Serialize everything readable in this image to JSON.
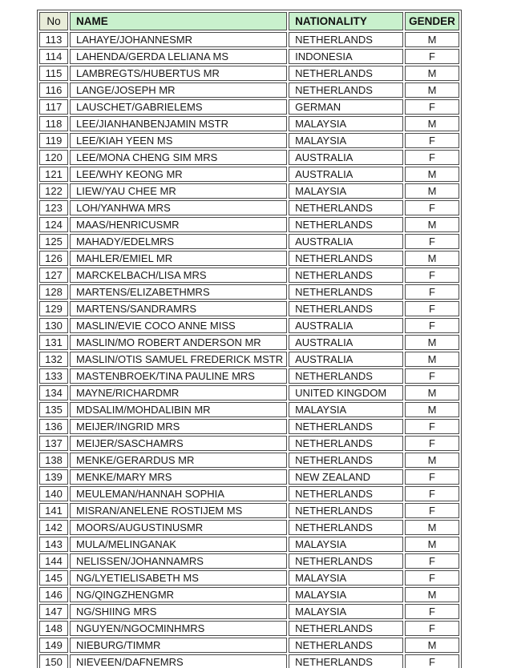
{
  "table": {
    "columns": [
      {
        "key": "no",
        "label": "No"
      },
      {
        "key": "name",
        "label": "NAME"
      },
      {
        "key": "nationality",
        "label": "NATIONALITY"
      },
      {
        "key": "gender",
        "label": "GENDER"
      }
    ],
    "rows": [
      {
        "no": "113",
        "name": "LAHAYE/JOHANNESMR",
        "nationality": "NETHERLANDS",
        "gender": "M"
      },
      {
        "no": "114",
        "name": "LAHENDA/GERDA LELIANA MS",
        "nationality": "INDONESIA",
        "gender": "F"
      },
      {
        "no": "115",
        "name": "LAMBREGTS/HUBERTUS MR",
        "nationality": "NETHERLANDS",
        "gender": "M"
      },
      {
        "no": "116",
        "name": "LANGE/JOSEPH MR",
        "nationality": "NETHERLANDS",
        "gender": "M"
      },
      {
        "no": "117",
        "name": "LAUSCHET/GABRIELEMS",
        "nationality": "GERMAN",
        "gender": "F"
      },
      {
        "no": "118",
        "name": "LEE/JIANHANBENJAMIN MSTR",
        "nationality": "MALAYSIA",
        "gender": "M"
      },
      {
        "no": "119",
        "name": "LEE/KIAH YEEN MS",
        "nationality": "MALAYSIA",
        "gender": "F"
      },
      {
        "no": "120",
        "name": "LEE/MONA CHENG SIM MRS",
        "nationality": "AUSTRALIA",
        "gender": "F"
      },
      {
        "no": "121",
        "name": "LEE/WHY KEONG MR",
        "nationality": "AUSTRALIA",
        "gender": "M"
      },
      {
        "no": "122",
        "name": "LIEW/YAU CHEE MR",
        "nationality": "MALAYSIA",
        "gender": "M"
      },
      {
        "no": "123",
        "name": "LOH/YANHWA MRS",
        "nationality": "NETHERLANDS",
        "gender": "F"
      },
      {
        "no": "124",
        "name": "MAAS/HENRICUSMR",
        "nationality": "NETHERLANDS",
        "gender": "M"
      },
      {
        "no": "125",
        "name": "MAHADY/EDELMRS",
        "nationality": "AUSTRALIA",
        "gender": "F"
      },
      {
        "no": "126",
        "name": "MAHLER/EMIEL MR",
        "nationality": "NETHERLANDS",
        "gender": "M"
      },
      {
        "no": "127",
        "name": "MARCKELBACH/LISA MRS",
        "nationality": "NETHERLANDS",
        "gender": "F"
      },
      {
        "no": "128",
        "name": "MARTENS/ELIZABETHMRS",
        "nationality": "NETHERLANDS",
        "gender": "F"
      },
      {
        "no": "129",
        "name": "MARTENS/SANDRAMRS",
        "nationality": "NETHERLANDS",
        "gender": "F"
      },
      {
        "no": "130",
        "name": "MASLIN/EVIE COCO ANNE MISS",
        "nationality": "AUSTRALIA",
        "gender": "F"
      },
      {
        "no": "131",
        "name": "MASLIN/MO ROBERT ANDERSON MR",
        "nationality": "AUSTRALIA",
        "gender": "M"
      },
      {
        "no": "132",
        "name": "MASLIN/OTIS SAMUEL FREDERICK MSTR",
        "nationality": "AUSTRALIA",
        "gender": "M"
      },
      {
        "no": "133",
        "name": "MASTENBROEK/TINA PAULINE MRS",
        "nationality": "NETHERLANDS",
        "gender": "F"
      },
      {
        "no": "134",
        "name": "MAYNE/RICHARDMR",
        "nationality": "UNITED KINGDOM",
        "gender": "M"
      },
      {
        "no": "135",
        "name": "MDSALIM/MOHDALIBIN MR",
        "nationality": "MALAYSIA",
        "gender": "M"
      },
      {
        "no": "136",
        "name": "MEIJER/INGRID MRS",
        "nationality": "NETHERLANDS",
        "gender": "F"
      },
      {
        "no": "137",
        "name": "MEIJER/SASCHAMRS",
        "nationality": "NETHERLANDS",
        "gender": "F"
      },
      {
        "no": "138",
        "name": "MENKE/GERARDUS MR",
        "nationality": "NETHERLANDS",
        "gender": "M"
      },
      {
        "no": "139",
        "name": "MENKE/MARY MRS",
        "nationality": "NEW ZEALAND",
        "gender": "F"
      },
      {
        "no": "140",
        "name": "MEULEMAN/HANNAH SOPHIA",
        "nationality": "NETHERLANDS",
        "gender": "F"
      },
      {
        "no": "141",
        "name": "MISRAN/ANELENE ROSTIJEM MS",
        "nationality": "NETHERLANDS",
        "gender": "F"
      },
      {
        "no": "142",
        "name": "MOORS/AUGUSTINUSMR",
        "nationality": "NETHERLANDS",
        "gender": "M"
      },
      {
        "no": "143",
        "name": "MULA/MELINGANAK",
        "nationality": "MALAYSIA",
        "gender": "M"
      },
      {
        "no": "144",
        "name": "NELISSEN/JOHANNAMRS",
        "nationality": "NETHERLANDS",
        "gender": "F"
      },
      {
        "no": "145",
        "name": "NG/LYETIELISABETH MS",
        "nationality": "MALAYSIA",
        "gender": "F"
      },
      {
        "no": "146",
        "name": "NG/QINGZHENGMR",
        "nationality": "MALAYSIA",
        "gender": "M"
      },
      {
        "no": "147",
        "name": "NG/SHIING MRS",
        "nationality": "MALAYSIA",
        "gender": "F"
      },
      {
        "no": "148",
        "name": "NGUYEN/NGOCMINHMRS",
        "nationality": "NETHERLANDS",
        "gender": "F"
      },
      {
        "no": "149",
        "name": "NIEBURG/TIMMR",
        "nationality": "NETHERLANDS",
        "gender": "M"
      },
      {
        "no": "150",
        "name": "NIEVEEN/DAFNEMRS",
        "nationality": "NETHERLANDS",
        "gender": "F"
      }
    ]
  },
  "colors": {
    "header_green": "#c9f0cd",
    "header_no_bg": "#e8ecd9",
    "border": "#4b4b4b",
    "text": "#1a1a1a"
  }
}
